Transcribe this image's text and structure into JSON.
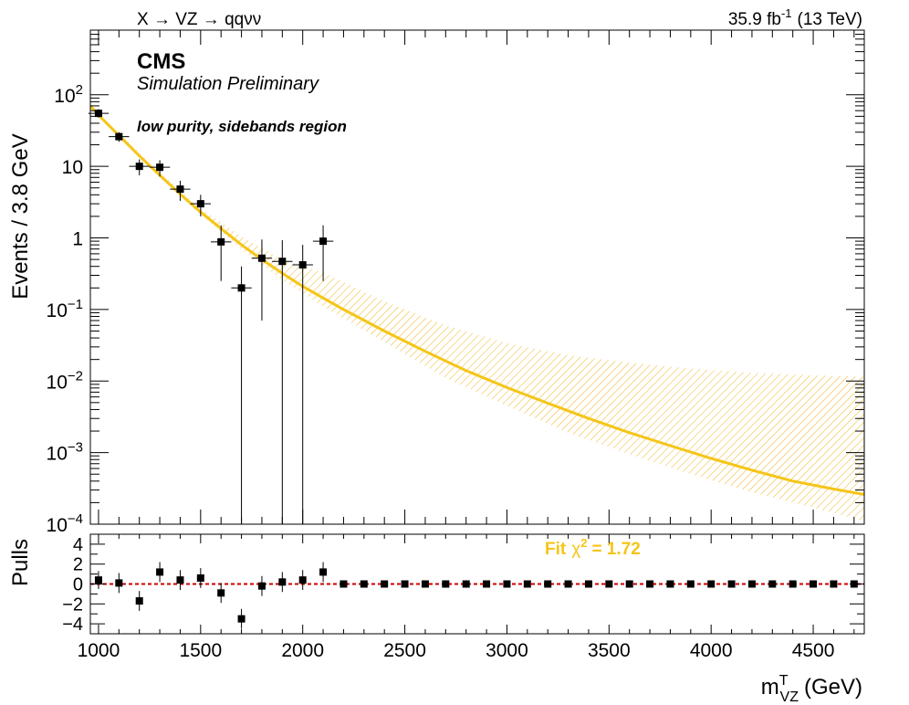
{
  "header": {
    "process": "X → VZ → qqνν",
    "lumi_value": "35.9 fb",
    "lumi_exp": "-1",
    "energy": "(13 TeV)"
  },
  "labels": {
    "cms": "CMS",
    "simulation": "Simulation Preliminary",
    "region": "low purity, sidebands region",
    "fit_text": "Fit",
    "chi_sym": "χ",
    "chi_exp": "2",
    "chi_val": "= 1.72"
  },
  "colors": {
    "fit": "#f5c518",
    "band": "#f0b41e",
    "pull_line": "#cc0000",
    "data": "#000000"
  },
  "chart_data": [
    {
      "type": "scatter",
      "name": "main",
      "title": "",
      "xlabel_main": "m",
      "xlabel_sup": "T",
      "xlabel_sub": "VZ",
      "xlabel_unit": "(GeV)",
      "ylabel": "Events / 3.8 GeV",
      "xlim": [
        960,
        4750
      ],
      "ylim": [
        0.0001,
        800
      ],
      "yscale": "log",
      "x_ticks": [
        1000,
        1500,
        2000,
        2500,
        3000,
        3500,
        4000,
        4500
      ],
      "x_tick_labels": [
        "1000",
        "1500",
        "2000",
        "2500",
        "3000",
        "3500",
        "4000",
        "4500"
      ],
      "y_tick_labels": [
        {
          "value": 100,
          "base": "10",
          "exp": "2"
        },
        {
          "value": 10,
          "base": "10",
          "exp": ""
        },
        {
          "value": 1,
          "base": "1",
          "exp": ""
        },
        {
          "value": 0.1,
          "base": "10",
          "exp": "−1"
        },
        {
          "value": 0.01,
          "base": "10",
          "exp": "−2"
        },
        {
          "value": 0.001,
          "base": "10",
          "exp": "−3"
        },
        {
          "value": 0.0001,
          "base": "10",
          "exp": "−4"
        }
      ],
      "data_points": [
        {
          "x": 1000,
          "y": 55,
          "err_low": 7,
          "err_high": 8
        },
        {
          "x": 1100,
          "y": 26,
          "err_low": 4,
          "err_high": 4
        },
        {
          "x": 1200,
          "y": 10,
          "err_low": 2.5,
          "err_high": 2.5
        },
        {
          "x": 1300,
          "y": 9.7,
          "err_low": 2.5,
          "err_high": 2.5
        },
        {
          "x": 1400,
          "y": 4.8,
          "err_low": 1.5,
          "err_high": 1.5
        },
        {
          "x": 1500,
          "y": 3.0,
          "err_low": 1.0,
          "err_high": 1.0
        },
        {
          "x": 1600,
          "y": 0.88,
          "err_low": 0.63,
          "err_high": 0.62
        },
        {
          "x": 1700,
          "y": 0.2,
          "err_low": 0.2,
          "err_high": 0.2
        },
        {
          "x": 1800,
          "y": 0.52,
          "err_low": 0.45,
          "err_high": 0.43
        },
        {
          "x": 1900,
          "y": 0.47,
          "err_low": 0.47,
          "err_high": 0.46
        },
        {
          "x": 2000,
          "y": 0.42,
          "err_low": 0.42,
          "err_high": 0.38
        },
        {
          "x": 2100,
          "y": 0.9,
          "err_low": 0.65,
          "err_high": 0.6
        }
      ],
      "fit_curve": [
        {
          "x": 960,
          "y": 70
        },
        {
          "x": 1000,
          "y": 52
        },
        {
          "x": 1100,
          "y": 27
        },
        {
          "x": 1200,
          "y": 14
        },
        {
          "x": 1300,
          "y": 7.5
        },
        {
          "x": 1400,
          "y": 4.1
        },
        {
          "x": 1500,
          "y": 2.3
        },
        {
          "x": 1600,
          "y": 1.35
        },
        {
          "x": 1700,
          "y": 0.8
        },
        {
          "x": 1800,
          "y": 0.5
        },
        {
          "x": 1900,
          "y": 0.32
        },
        {
          "x": 2000,
          "y": 0.21
        },
        {
          "x": 2200,
          "y": 0.1
        },
        {
          "x": 2400,
          "y": 0.05
        },
        {
          "x": 2600,
          "y": 0.026
        },
        {
          "x": 2800,
          "y": 0.014
        },
        {
          "x": 3000,
          "y": 0.0081
        },
        {
          "x": 3200,
          "y": 0.0049
        },
        {
          "x": 3400,
          "y": 0.003
        },
        {
          "x": 3600,
          "y": 0.0019
        },
        {
          "x": 3800,
          "y": 0.00125
        },
        {
          "x": 4000,
          "y": 0.00083
        },
        {
          "x": 4200,
          "y": 0.00057
        },
        {
          "x": 4400,
          "y": 0.0004
        },
        {
          "x": 4600,
          "y": 0.00031
        },
        {
          "x": 4750,
          "y": 0.00026
        }
      ],
      "uncertainty_band": [
        {
          "x": 1100,
          "low": 25,
          "high": 29
        },
        {
          "x": 1300,
          "low": 7,
          "high": 8.2
        },
        {
          "x": 1500,
          "low": 2.1,
          "high": 2.6
        },
        {
          "x": 1700,
          "low": 0.7,
          "high": 1.05
        },
        {
          "x": 1900,
          "low": 0.26,
          "high": 0.5
        },
        {
          "x": 2100,
          "low": 0.11,
          "high": 0.33
        },
        {
          "x": 2400,
          "low": 0.035,
          "high": 0.13
        },
        {
          "x": 2700,
          "low": 0.011,
          "high": 0.06
        },
        {
          "x": 3000,
          "low": 0.0045,
          "high": 0.034
        },
        {
          "x": 3300,
          "low": 0.0019,
          "high": 0.023
        },
        {
          "x": 3600,
          "low": 0.00095,
          "high": 0.018
        },
        {
          "x": 3900,
          "low": 0.0005,
          "high": 0.015
        },
        {
          "x": 4200,
          "low": 0.00028,
          "high": 0.013
        },
        {
          "x": 4500,
          "low": 0.00017,
          "high": 0.012
        },
        {
          "x": 4750,
          "low": 0.00011,
          "high": 0.0115
        }
      ]
    },
    {
      "type": "scatter",
      "name": "pulls",
      "ylabel": "Pulls",
      "xlim": [
        960,
        4750
      ],
      "ylim": [
        -5,
        5
      ],
      "y_ticks": [
        4,
        2,
        0,
        -2,
        -4
      ],
      "y_tick_labels": [
        "4",
        "2",
        "0",
        "−2",
        "−4"
      ],
      "points": [
        {
          "x": 1000,
          "y": 0.4,
          "err": 0.9
        },
        {
          "x": 1100,
          "y": 0.1,
          "err": 1.0
        },
        {
          "x": 1200,
          "y": -1.7,
          "err": 1.0
        },
        {
          "x": 1300,
          "y": 1.2,
          "err": 1.0
        },
        {
          "x": 1400,
          "y": 0.4,
          "err": 1.0
        },
        {
          "x": 1500,
          "y": 0.6,
          "err": 1.0
        },
        {
          "x": 1600,
          "y": -0.9,
          "err": 1.0
        },
        {
          "x": 1700,
          "y": -3.5,
          "err": 1.0
        },
        {
          "x": 1800,
          "y": -0.2,
          "err": 1.0
        },
        {
          "x": 1900,
          "y": 0.2,
          "err": 1.0
        },
        {
          "x": 2000,
          "y": 0.4,
          "err": 1.0
        },
        {
          "x": 2100,
          "y": 1.2,
          "err": 1.0
        },
        {
          "x": 2200,
          "y": 0,
          "err": 0
        },
        {
          "x": 2300,
          "y": 0,
          "err": 0
        },
        {
          "x": 2400,
          "y": 0,
          "err": 0
        },
        {
          "x": 2500,
          "y": 0,
          "err": 0
        },
        {
          "x": 2600,
          "y": 0,
          "err": 0
        },
        {
          "x": 2700,
          "y": 0,
          "err": 0
        },
        {
          "x": 2800,
          "y": 0,
          "err": 0
        },
        {
          "x": 2900,
          "y": 0,
          "err": 0
        },
        {
          "x": 3000,
          "y": 0,
          "err": 0
        },
        {
          "x": 3100,
          "y": 0,
          "err": 0
        },
        {
          "x": 3200,
          "y": 0,
          "err": 0
        },
        {
          "x": 3300,
          "y": 0,
          "err": 0
        },
        {
          "x": 3400,
          "y": 0,
          "err": 0
        },
        {
          "x": 3500,
          "y": 0,
          "err": 0
        },
        {
          "x": 3600,
          "y": 0,
          "err": 0
        },
        {
          "x": 3700,
          "y": 0,
          "err": 0
        },
        {
          "x": 3800,
          "y": 0,
          "err": 0
        },
        {
          "x": 3900,
          "y": 0,
          "err": 0
        },
        {
          "x": 4000,
          "y": 0,
          "err": 0
        },
        {
          "x": 4100,
          "y": 0,
          "err": 0
        },
        {
          "x": 4200,
          "y": 0,
          "err": 0
        },
        {
          "x": 4300,
          "y": 0,
          "err": 0
        },
        {
          "x": 4400,
          "y": 0,
          "err": 0
        },
        {
          "x": 4500,
          "y": 0,
          "err": 0
        },
        {
          "x": 4600,
          "y": 0,
          "err": 0
        },
        {
          "x": 4700,
          "y": 0,
          "err": 0
        }
      ]
    }
  ]
}
